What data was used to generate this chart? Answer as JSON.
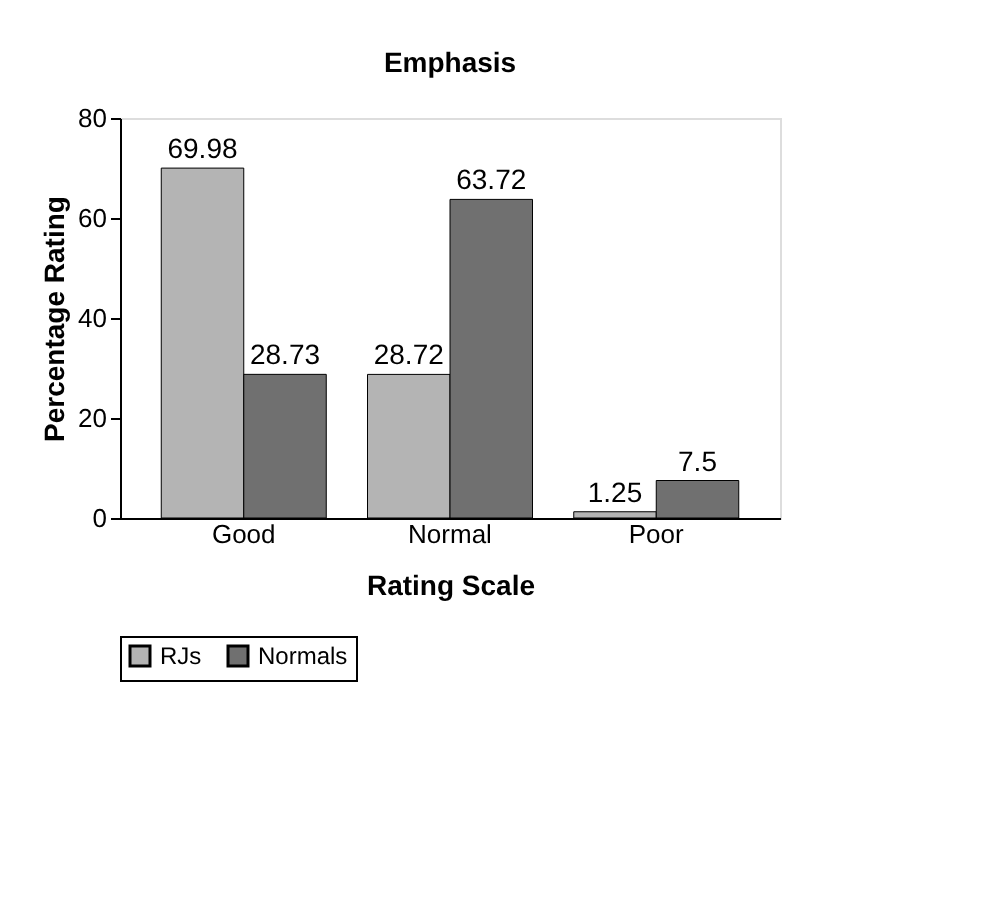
{
  "chart_data": {
    "type": "bar",
    "title": "Emphasis",
    "xlabel": "Rating Scale",
    "ylabel": "Percentage Rating",
    "categories": [
      "Good",
      "Normal",
      "Poor"
    ],
    "series": [
      {
        "name": "RJs",
        "color": "#b4b4b4",
        "values": [
          69.98,
          28.72,
          1.25
        ]
      },
      {
        "name": "Normals",
        "color": "#707070",
        "values": [
          28.73,
          63.72,
          7.5
        ]
      }
    ],
    "ylim": [
      0,
      80
    ],
    "yticks": [
      0,
      20,
      40,
      60,
      80
    ],
    "grid": false,
    "legend": "bottom",
    "data_labels": true
  }
}
